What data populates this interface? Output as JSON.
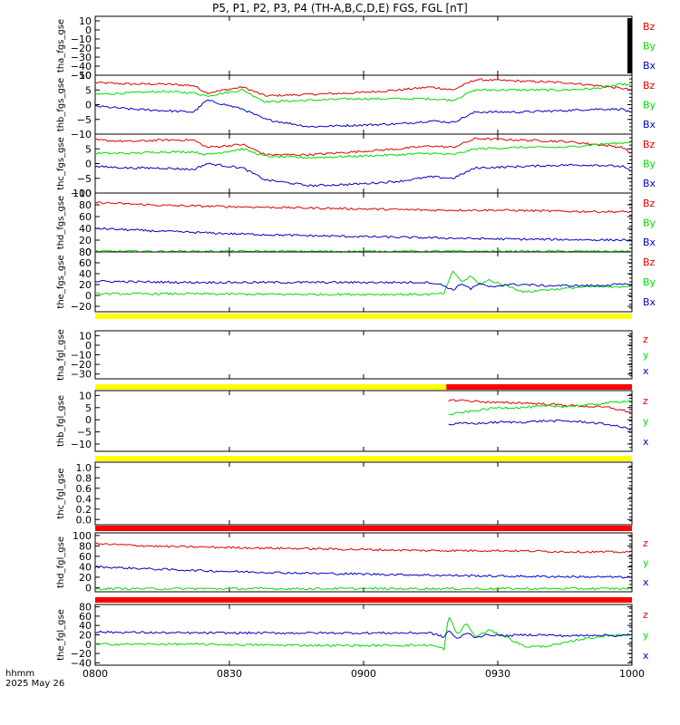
{
  "title": "P5, P1, P2, P3, P4 (TH-A,B,C,D,E) FGS, FGL [nT]",
  "footer": {
    "time_label": "hhmm",
    "date_label": "2025 May 26"
  },
  "colors": {
    "x": "#0000cc",
    "y": "#00dd00",
    "z": "#dd0000",
    "bar_yellow": "#ffff00",
    "bar_red": "#ff0000"
  },
  "chart_data": {
    "type": "line",
    "x_ticks": [
      "0800",
      "0830",
      "0900",
      "0930",
      "1000"
    ],
    "xlim_minutes": [
      0,
      120
    ],
    "panels": [
      {
        "id": "tha-fgs",
        "ylabel": "tha_fgs_gse",
        "ylim": [
          -50,
          15
        ],
        "yticks": [
          "10",
          "0",
          "−10",
          "−20",
          "−30",
          "−40",
          "−50"
        ],
        "ytick_values": [
          10,
          0,
          -10,
          -20,
          -30,
          -40,
          -50
        ],
        "legend": [
          "Bz",
          "By",
          "Bx"
        ],
        "data_available": false,
        "series": []
      },
      {
        "id": "thb-fgs",
        "ylabel": "thb_fgs_gse",
        "ylim": [
          -10,
          10
        ],
        "yticks": [
          "10",
          "5",
          "0",
          "−5",
          "−10"
        ],
        "ytick_values": [
          10,
          5,
          0,
          -5,
          -10
        ],
        "legend": [
          "Bz",
          "By",
          "Bx"
        ],
        "data_available": true,
        "series": [
          {
            "comp": "z",
            "t": [
              0,
              8,
              15,
              22,
              25,
              33,
              38,
              48,
              58,
              68,
              75,
              80,
              85,
              95,
              105,
              112,
              118,
              120
            ],
            "v": [
              7.5,
              7.0,
              7.0,
              6.5,
              4.0,
              6.0,
              3.0,
              3.5,
              4.0,
              5.0,
              6.0,
              5.0,
              8.5,
              8.0,
              7.5,
              6.5,
              5.5,
              5.0
            ]
          },
          {
            "comp": "y",
            "t": [
              0,
              8,
              15,
              22,
              25,
              33,
              38,
              48,
              58,
              68,
              75,
              80,
              85,
              95,
              105,
              112,
              118,
              120
            ],
            "v": [
              3.5,
              4.0,
              4.5,
              4.0,
              3.0,
              5.0,
              1.0,
              1.5,
              2.0,
              2.0,
              2.0,
              1.5,
              5.0,
              5.0,
              5.0,
              5.5,
              7.0,
              6.5
            ]
          },
          {
            "comp": "x",
            "t": [
              0,
              8,
              15,
              22,
              25,
              33,
              38,
              48,
              58,
              68,
              75,
              80,
              85,
              95,
              105,
              112,
              118,
              120
            ],
            "v": [
              -0.5,
              -1.5,
              -2.0,
              -2.5,
              1.5,
              -1.5,
              -5.0,
              -7.5,
              -7.0,
              -6.5,
              -5.5,
              -6.0,
              -2.5,
              -2.5,
              -2.0,
              -1.5,
              -1.5,
              -3.0
            ]
          }
        ]
      },
      {
        "id": "thc-fgs",
        "ylabel": "thc_fgs_gse",
        "ylim": [
          -10,
          10
        ],
        "yticks": [
          "5",
          "0",
          "−5",
          "−10"
        ],
        "ytick_values": [
          5,
          0,
          -5,
          -10
        ],
        "legend": [
          "Bz",
          "By",
          "Bx"
        ],
        "data_available": true,
        "series": [
          {
            "comp": "z",
            "t": [
              0,
              8,
              15,
              22,
              25,
              33,
              38,
              48,
              58,
              68,
              75,
              80,
              85,
              95,
              105,
              112,
              118,
              120
            ],
            "v": [
              8.0,
              7.5,
              8.0,
              8.0,
              5.5,
              6.5,
              3.0,
              3.0,
              4.0,
              5.0,
              6.0,
              5.5,
              8.5,
              8.0,
              7.5,
              6.5,
              5.5,
              3.0
            ]
          },
          {
            "comp": "y",
            "t": [
              0,
              8,
              15,
              22,
              25,
              33,
              38,
              48,
              58,
              68,
              75,
              80,
              85,
              95,
              105,
              112,
              118,
              120
            ],
            "v": [
              3.5,
              3.5,
              4.0,
              4.0,
              3.0,
              5.0,
              2.5,
              2.0,
              2.5,
              3.0,
              3.5,
              3.0,
              5.0,
              5.5,
              5.5,
              6.5,
              7.0,
              7.5
            ]
          },
          {
            "comp": "x",
            "t": [
              0,
              8,
              15,
              22,
              25,
              33,
              38,
              48,
              58,
              68,
              75,
              80,
              85,
              95,
              105,
              112,
              118,
              120
            ],
            "v": [
              -1.0,
              -1.5,
              -1.5,
              -2.0,
              0.0,
              -1.5,
              -5.5,
              -7.5,
              -7.0,
              -6.0,
              -4.5,
              -5.0,
              -1.5,
              -1.0,
              -0.5,
              -0.5,
              -1.0,
              -3.0
            ]
          }
        ]
      },
      {
        "id": "thd-fgs",
        "ylabel": "thd_fgs_gse",
        "ylim": [
          0,
          100
        ],
        "yticks": [
          "100",
          "80",
          "60",
          "40",
          "20",
          "0"
        ],
        "ytick_values": [
          100,
          80,
          60,
          40,
          20,
          0
        ],
        "legend": [
          "Bz",
          "By",
          "Bx"
        ],
        "data_available": true,
        "series": [
          {
            "comp": "z",
            "t": [
              0,
              15,
              30,
              45,
              60,
              75,
              90,
              105,
              120
            ],
            "v": [
              84,
              79,
              77,
              75,
              73,
              71,
              71,
              69,
              68
            ]
          },
          {
            "comp": "y",
            "t": [
              0,
              30,
              60,
              90,
              120
            ],
            "v": [
              1,
              1,
              1,
              1,
              1
            ]
          },
          {
            "comp": "x",
            "t": [
              0,
              15,
              30,
              45,
              60,
              75,
              90,
              105,
              120
            ],
            "v": [
              40,
              35,
              31,
              28,
              26,
              24,
              22,
              21,
              20
            ]
          }
        ]
      },
      {
        "id": "the-fgs",
        "ylabel": "the_fgs_gse",
        "ylim": [
          -30,
          80
        ],
        "yticks": [
          "80",
          "60",
          "40",
          "20",
          "0",
          "−20"
        ],
        "ytick_values": [
          80,
          60,
          40,
          20,
          0,
          -20
        ],
        "legend": [
          "Bz",
          "By",
          "Bx"
        ],
        "data_available": true,
        "series": [
          {
            "comp": "y",
            "t": [
              0,
              20,
              40,
              60,
              75,
              78,
              80,
              82,
              84,
              86,
              88,
              92,
              96,
              100,
              104,
              108,
              112,
              116,
              120
            ],
            "v": [
              3,
              3,
              2,
              2,
              2,
              4,
              45,
              25,
              35,
              20,
              28,
              18,
              6,
              10,
              12,
              15,
              16,
              15,
              18
            ]
          },
          {
            "comp": "x",
            "t": [
              0,
              20,
              40,
              60,
              75,
              78,
              80,
              82,
              84,
              86,
              88,
              92,
              96,
              100,
              104,
              108,
              112,
              116,
              120
            ],
            "v": [
              26,
              24,
              24,
              24,
              24,
              18,
              10,
              22,
              12,
              22,
              15,
              20,
              20,
              18,
              18,
              18,
              18,
              20,
              20
            ]
          }
        ]
      },
      {
        "id": "tha-fgl",
        "ylabel": "tha_fgl_gse",
        "ylim": [
          -35,
          15
        ],
        "yticks": [
          "10",
          "0",
          "−10",
          "−20",
          "−30"
        ],
        "ytick_values": [
          10,
          0,
          -10,
          -20,
          -30
        ],
        "legend": [
          "z",
          "y",
          "x"
        ],
        "data_available": false,
        "bar": [
          {
            "from": 0,
            "to": 120,
            "color": "yellow"
          }
        ],
        "series": []
      },
      {
        "id": "thb-fgl",
        "ylabel": "thb_fgl_gse",
        "ylim": [
          -13,
          12
        ],
        "yticks": [
          "10",
          "5",
          "0",
          "−5",
          "−10"
        ],
        "ytick_values": [
          10,
          5,
          0,
          -5,
          -10
        ],
        "legend": [
          "z",
          "y",
          "x"
        ],
        "data_available": true,
        "bar": [
          {
            "from": 0,
            "to": 78.5,
            "color": "yellow"
          },
          {
            "from": 78.5,
            "to": 120,
            "color": "red"
          }
        ],
        "series": [
          {
            "comp": "z",
            "t": [
              79,
              82,
              86,
              90,
              95,
              100,
              105,
              110,
              115,
              120
            ],
            "v": [
              8,
              8,
              7.5,
              7,
              7,
              6.5,
              6,
              5.5,
              5,
              3
            ]
          },
          {
            "comp": "y",
            "t": [
              79,
              82,
              86,
              90,
              95,
              100,
              105,
              110,
              115,
              120
            ],
            "v": [
              2,
              3,
              4,
              5,
              5,
              5.5,
              5.5,
              6,
              7,
              8
            ]
          },
          {
            "comp": "x",
            "t": [
              79,
              82,
              86,
              90,
              95,
              100,
              105,
              110,
              115,
              120
            ],
            "v": [
              -2,
              -1.5,
              -1.5,
              -1,
              -1,
              -0.5,
              -0.5,
              -1,
              -2,
              -4
            ]
          }
        ]
      },
      {
        "id": "thc-fgl",
        "ylabel": "thc_fgl_gse",
        "ylim": [
          -0.1,
          1.1
        ],
        "yticks": [
          "1.0",
          "0.8",
          "0.6",
          "0.4",
          "0.2",
          "0.0"
        ],
        "ytick_values": [
          1,
          0.8,
          0.6,
          0.4,
          0.2,
          0
        ],
        "legend": [],
        "data_available": false,
        "bar": [
          {
            "from": 0,
            "to": 120,
            "color": "yellow"
          }
        ],
        "series": []
      },
      {
        "id": "thd-fgl",
        "ylabel": "thd_fgl_gse",
        "ylim": [
          -8,
          105
        ],
        "yticks": [
          "100",
          "80",
          "60",
          "40",
          "20",
          "0"
        ],
        "ytick_values": [
          100,
          80,
          60,
          40,
          20,
          0
        ],
        "legend": [
          "z",
          "y",
          "x"
        ],
        "data_available": true,
        "bar": [
          {
            "from": 0,
            "to": 120,
            "color": "red"
          }
        ],
        "series": [
          {
            "comp": "z",
            "t": [
              0,
              15,
              30,
              45,
              60,
              75,
              90,
              105,
              120
            ],
            "v": [
              84,
              79,
              77,
              75,
              73,
              71,
              71,
              69,
              68
            ]
          },
          {
            "comp": "y",
            "t": [
              0,
              30,
              60,
              90,
              120
            ],
            "v": [
              -2,
              -2,
              -2,
              -2,
              -2
            ]
          },
          {
            "comp": "x",
            "t": [
              0,
              15,
              30,
              45,
              60,
              75,
              90,
              105,
              120
            ],
            "v": [
              40,
              35,
              31,
              28,
              26,
              24,
              22,
              21,
              20
            ]
          }
        ]
      },
      {
        "id": "the-fgl",
        "ylabel": "the_fgl_gse",
        "ylim": [
          -45,
          85
        ],
        "yticks": [
          "80",
          "60",
          "40",
          "20",
          "0",
          "−20",
          "−40"
        ],
        "ytick_values": [
          80,
          60,
          40,
          20,
          0,
          -20,
          -40
        ],
        "legend": [
          "z",
          "y",
          "x"
        ],
        "data_available": true,
        "bar": [
          {
            "from": 0,
            "to": 120,
            "color": "red"
          }
        ],
        "series": [
          {
            "comp": "y",
            "t": [
              0,
              20,
              40,
              60,
              75,
              78,
              79,
              81,
              83,
              85,
              88,
              92,
              96,
              100,
              104,
              108,
              112,
              116,
              120
            ],
            "v": [
              0,
              0,
              -2,
              -3,
              -2,
              -10,
              60,
              20,
              45,
              15,
              30,
              15,
              -5,
              -5,
              0,
              10,
              15,
              20,
              20
            ]
          },
          {
            "comp": "x",
            "t": [
              0,
              20,
              40,
              60,
              75,
              78,
              79,
              81,
              83,
              85,
              88,
              92,
              96,
              100,
              104,
              108,
              112,
              116,
              120
            ],
            "v": [
              26,
              24,
              24,
              24,
              24,
              15,
              30,
              10,
              25,
              15,
              20,
              18,
              20,
              20,
              18,
              18,
              20,
              18,
              20
            ]
          }
        ]
      }
    ]
  }
}
